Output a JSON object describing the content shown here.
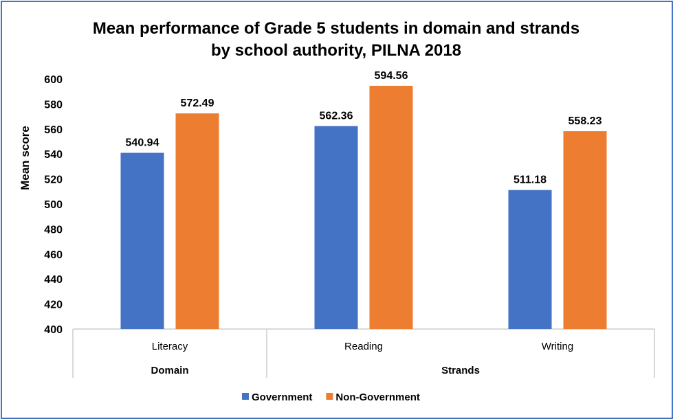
{
  "chart_data": {
    "type": "bar",
    "title_lines": [
      "Mean performance of Grade 5 students in domain and strands",
      "by school authority, PILNA 2018"
    ],
    "ylabel": "Mean score",
    "xlabel": "",
    "ylim": [
      400,
      600
    ],
    "yticks": [
      400,
      420,
      440,
      460,
      480,
      500,
      520,
      540,
      560,
      580,
      600
    ],
    "grid": false,
    "categories": [
      "Literacy",
      "Reading",
      "Writing"
    ],
    "groups": [
      {
        "label": "Domain",
        "categories": [
          "Literacy"
        ]
      },
      {
        "label": "Strands",
        "categories": [
          "Reading",
          "Writing"
        ]
      }
    ],
    "series": [
      {
        "name": "Government",
        "color": "#4472C4",
        "values": [
          540.94,
          562.36,
          511.18
        ]
      },
      {
        "name": "Non-Government",
        "color": "#ED7D31",
        "values": [
          572.49,
          594.56,
          558.23
        ]
      }
    ],
    "legend_position": "bottom",
    "data_labels": true
  }
}
